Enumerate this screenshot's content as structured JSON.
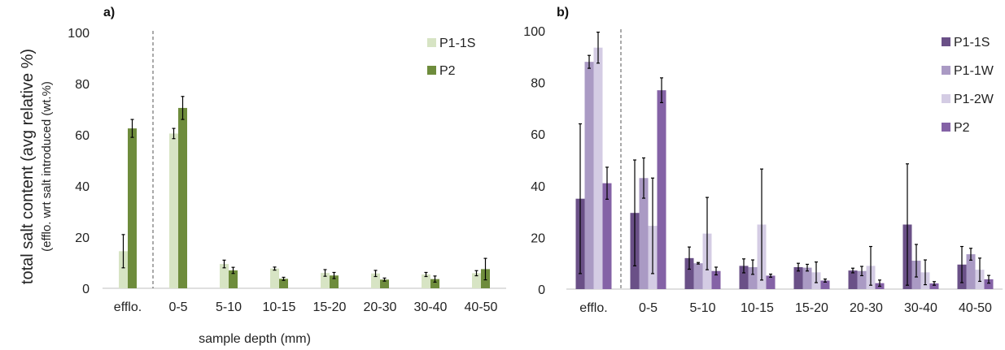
{
  "figure": {
    "ylabel_line1": "total salt content (avg relative %)",
    "ylabel_line2": "(efflo. wrt salt introduced (wt.%)",
    "xlabel": "sample depth (mm)"
  },
  "chart_data": [
    {
      "type": "bar",
      "panel_label": "a)",
      "categories": [
        "efflo.",
        "0-5",
        "5-10",
        "10-15",
        "15-20",
        "20-30",
        "30-40",
        "40-50"
      ],
      "ylim": [
        0,
        100
      ],
      "yticks": [
        "0",
        "20",
        "40",
        "60",
        "80",
        "100"
      ],
      "grid": false,
      "legend_position": "top-right",
      "separator_after_category": "efflo.",
      "series": [
        {
          "name": "P1-1S",
          "color": "#d7e4c4",
          "values": [
            14.5,
            60.5,
            9.5,
            7.7,
            6.0,
            5.8,
            5.4,
            5.9
          ],
          "errors": [
            6.5,
            2.0,
            1.5,
            0.6,
            1.3,
            1.2,
            0.8,
            1.0
          ]
        },
        {
          "name": "P2",
          "color": "#6e8c3c",
          "values": [
            62.5,
            70.5,
            7.0,
            3.7,
            5.0,
            3.4,
            3.6,
            7.5
          ],
          "errors": [
            3.5,
            4.5,
            1.2,
            0.6,
            1.2,
            0.6,
            1.2,
            4.2
          ]
        }
      ]
    },
    {
      "type": "bar",
      "panel_label": "b)",
      "categories": [
        "efflo.",
        "0-5",
        "5-10",
        "10-15",
        "15-20",
        "20-30",
        "30-40",
        "40-50"
      ],
      "ylim": [
        0,
        100
      ],
      "yticks": [
        "0",
        "20",
        "40",
        "60",
        "80",
        "100"
      ],
      "grid": false,
      "legend_position": "top-right",
      "separator_after_category": "efflo.",
      "series": [
        {
          "name": "P1-1S",
          "color": "#6a5087",
          "values": [
            35,
            29.5,
            12,
            9,
            8.5,
            7.2,
            25,
            9.5
          ],
          "errors": [
            29,
            20.5,
            4.3,
            2.7,
            1.5,
            0.9,
            23.5,
            7
          ]
        },
        {
          "name": "P1-1W",
          "color": "#aa9ac4",
          "values": [
            88,
            43,
            10,
            8.5,
            8.3,
            7,
            11,
            13.5
          ],
          "errors": [
            2.5,
            7.8,
            0.3,
            2.8,
            1.3,
            1.8,
            6.3,
            2.3
          ]
        },
        {
          "name": "P1-2W",
          "color": "#d4cce4",
          "values": [
            93.5,
            24.5,
            21.5,
            25,
            6.5,
            9,
            6.5,
            7.5
          ],
          "errors": [
            6,
            18.5,
            14,
            21.5,
            4,
            7.5,
            4.8,
            4.5
          ]
        },
        {
          "name": "P2",
          "color": "#8462a6",
          "values": [
            41,
            77,
            7,
            5.2,
            3.3,
            2.3,
            2.2,
            3.8
          ],
          "errors": [
            6.2,
            4.8,
            1.5,
            0.6,
            0.6,
            1.2,
            0.7,
            1.5
          ]
        }
      ]
    }
  ]
}
